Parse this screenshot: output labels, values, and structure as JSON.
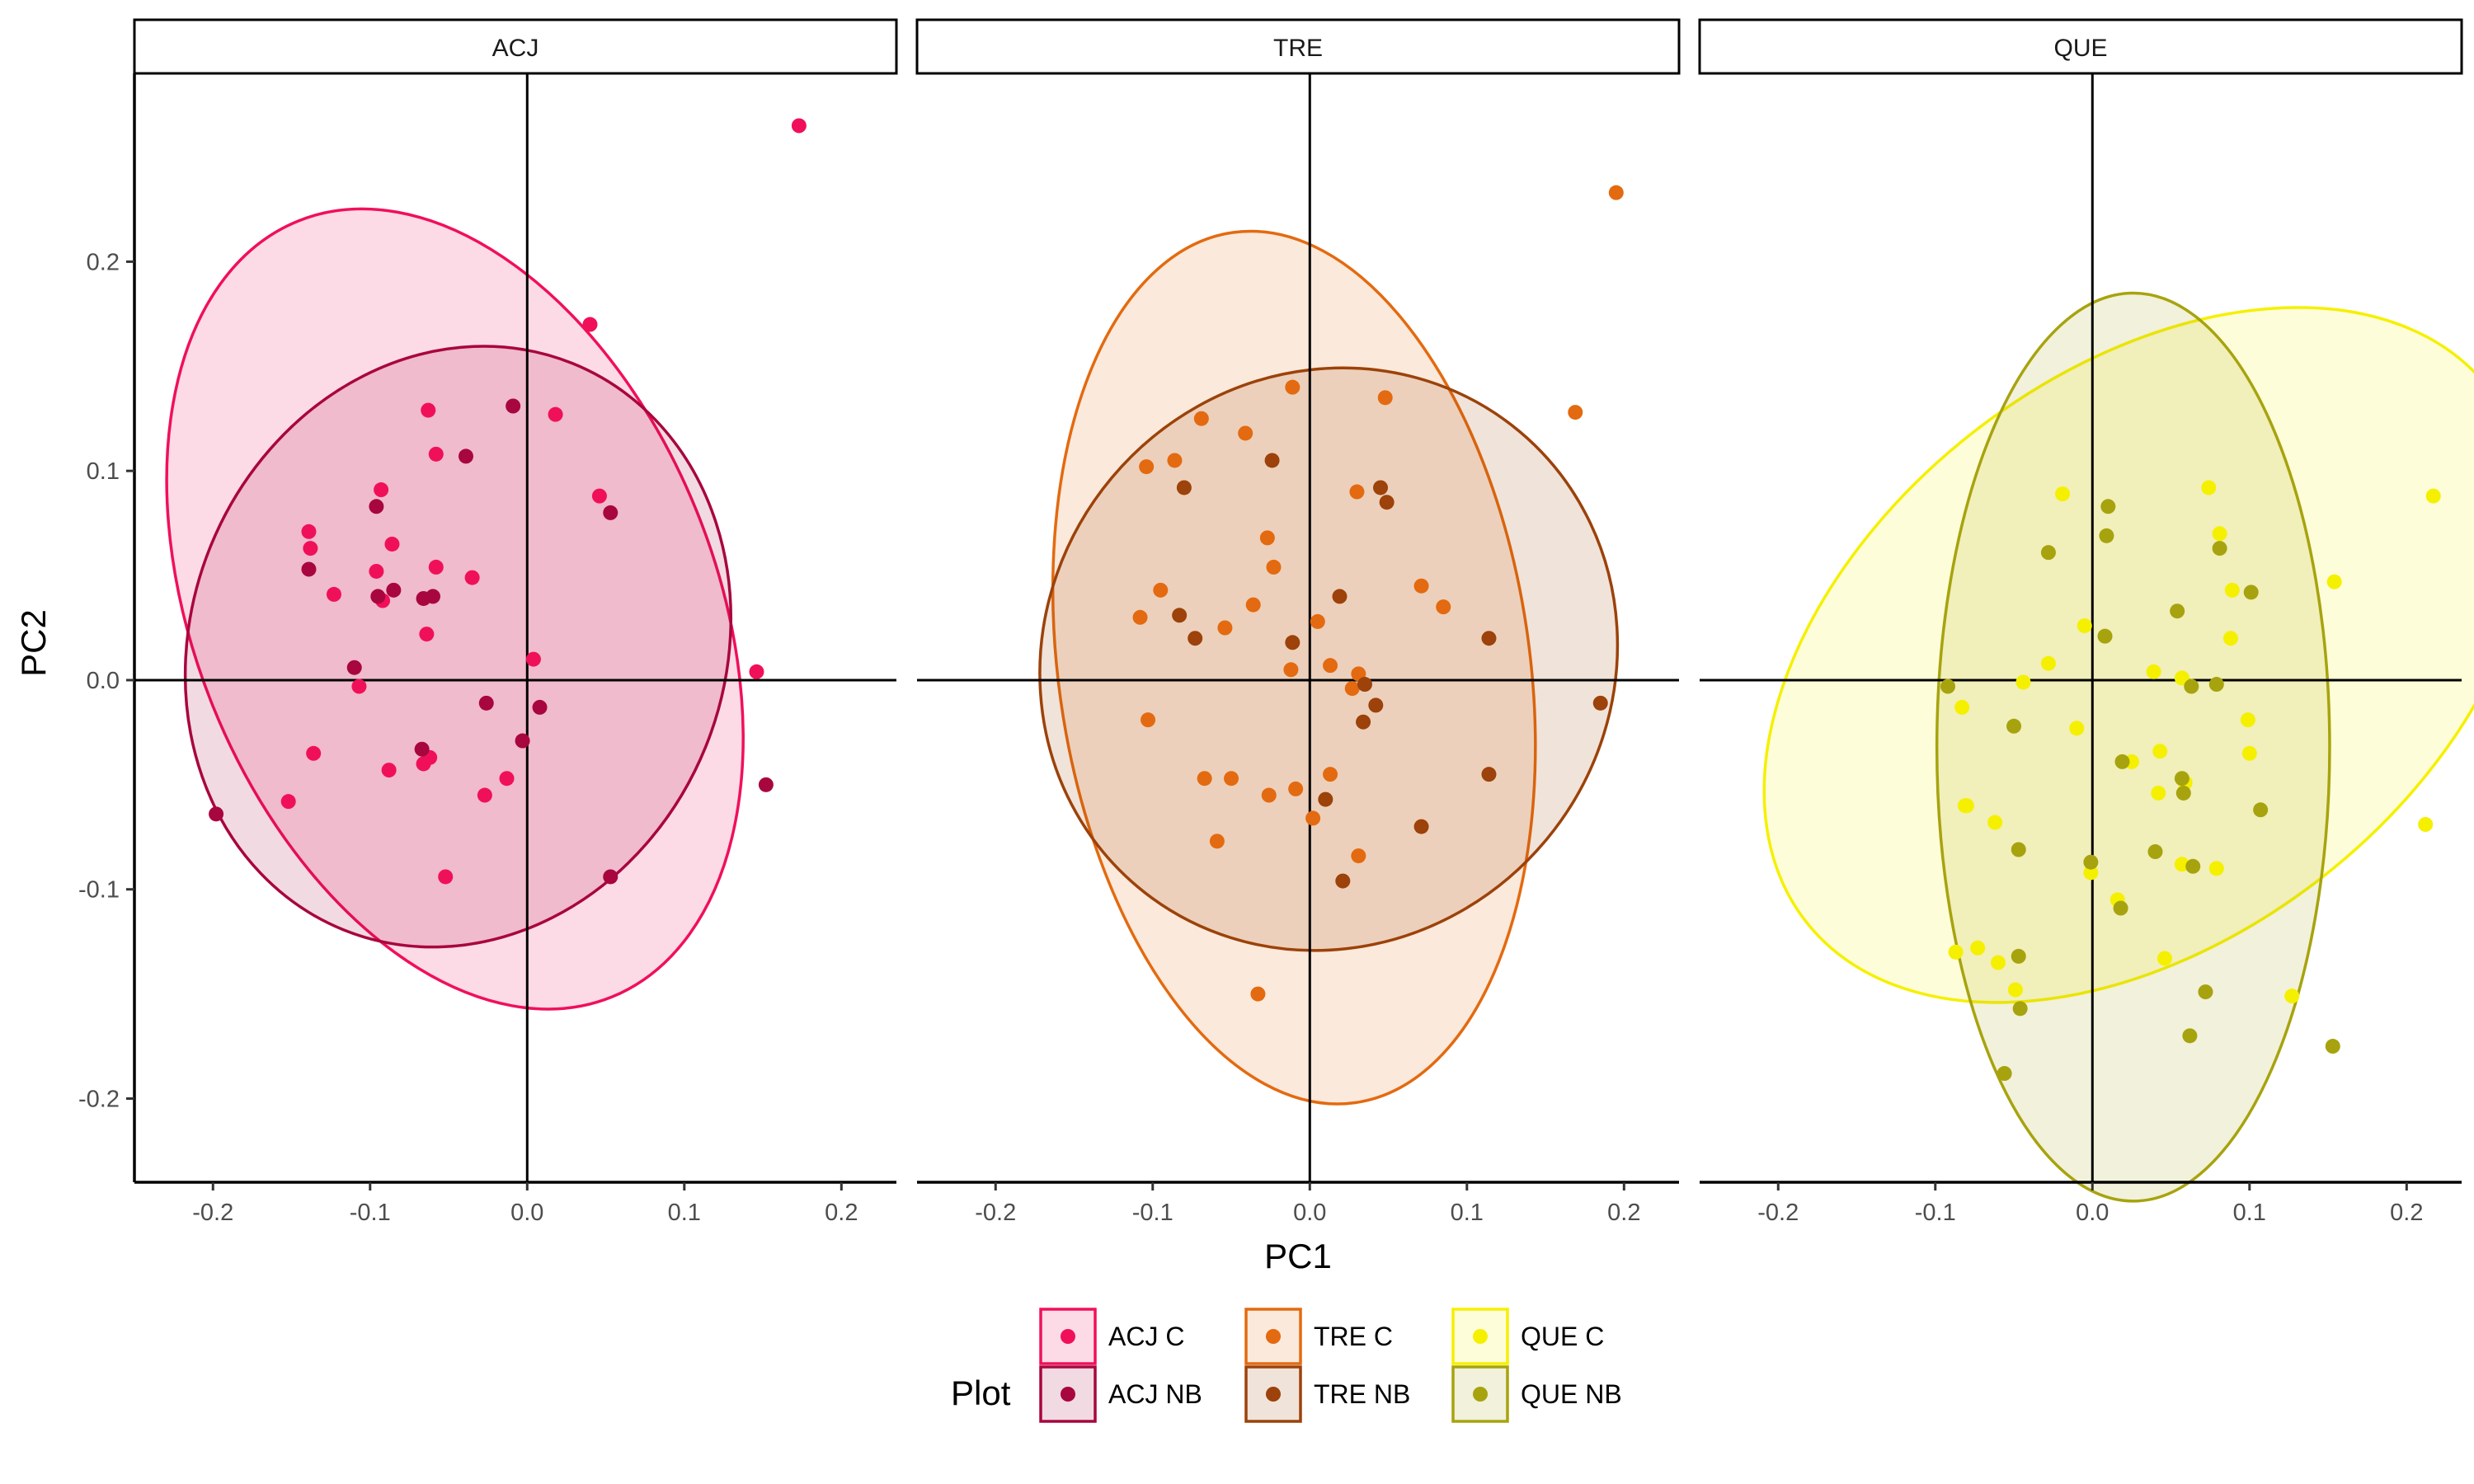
{
  "chart_data": {
    "type": "scatter",
    "xlabel": "PC1",
    "ylabel": "PC2",
    "xlim": [
      -0.25,
      0.235
    ],
    "ylim": [
      -0.24,
      0.29
    ],
    "x_ticks": [
      -0.2,
      -0.1,
      0.0,
      0.1,
      0.2
    ],
    "y_ticks": [
      -0.2,
      -0.1,
      0.0,
      0.1,
      0.2
    ],
    "x_tick_labels": [
      "-0.2",
      "-0.1",
      "0.0",
      "0.1",
      "0.2"
    ],
    "y_tick_labels": [
      "-0.2",
      "-0.1",
      "0.0",
      "0.1",
      "0.2"
    ],
    "reference_lines": {
      "x": 0,
      "y": 0
    },
    "legend": {
      "title": "Plot",
      "position": "bottom",
      "entries": [
        {
          "label": "ACJ C",
          "color": "#F0105A"
        },
        {
          "label": "ACJ NB",
          "color": "#A8063F"
        },
        {
          "label": "TRE C",
          "color": "#E36A10"
        },
        {
          "label": "TRE NB",
          "color": "#9C420A"
        },
        {
          "label": "QUE C",
          "color": "#F5F000"
        },
        {
          "label": "QUE NB",
          "color": "#A7A30E"
        }
      ]
    },
    "panels": [
      {
        "title": "ACJ",
        "series": [
          {
            "name": "ACJ C",
            "color": "#F0105A",
            "fill_opacity": 0.15,
            "ellipse": {
              "cx": -0.046,
              "cy": 0.034,
              "rx": 0.166,
              "ry": 0.2,
              "angle_deg": 22
            },
            "points": [
              [
                0.173,
                0.265
              ],
              [
                0.04,
                0.17
              ],
              [
                -0.063,
                0.129
              ],
              [
                0.018,
                0.127
              ],
              [
                -0.058,
                0.108
              ],
              [
                -0.093,
                0.091
              ],
              [
                0.046,
                0.088
              ],
              [
                -0.139,
                0.071
              ],
              [
                -0.138,
                0.063
              ],
              [
                -0.086,
                0.065
              ],
              [
                -0.058,
                0.054
              ],
              [
                -0.096,
                0.052
              ],
              [
                -0.035,
                0.049
              ],
              [
                -0.123,
                0.041
              ],
              [
                -0.092,
                0.038
              ],
              [
                -0.064,
                0.022
              ],
              [
                0.004,
                0.01
              ],
              [
                0.146,
                0.004
              ],
              [
                -0.107,
                -0.003
              ],
              [
                -0.062,
                -0.037
              ],
              [
                -0.066,
                -0.04
              ],
              [
                -0.088,
                -0.043
              ],
              [
                -0.136,
                -0.035
              ],
              [
                -0.013,
                -0.047
              ],
              [
                -0.027,
                -0.055
              ],
              [
                -0.152,
                -0.058
              ],
              [
                -0.052,
                -0.094
              ]
            ]
          },
          {
            "name": "ACJ NB",
            "color": "#A8063F",
            "fill_opacity": 0.15,
            "ellipse": {
              "cx": -0.044,
              "cy": 0.016,
              "rx": 0.17,
              "ry": 0.146,
              "angle_deg": -22
            },
            "points": [
              [
                -0.009,
                0.131
              ],
              [
                -0.039,
                0.107
              ],
              [
                -0.096,
                0.083
              ],
              [
                0.053,
                0.08
              ],
              [
                -0.139,
                0.053
              ],
              [
                -0.085,
                0.043
              ],
              [
                -0.095,
                0.04
              ],
              [
                -0.06,
                0.04
              ],
              [
                -0.066,
                0.039
              ],
              [
                -0.11,
                0.006
              ],
              [
                -0.026,
                -0.011
              ],
              [
                0.008,
                -0.013
              ],
              [
                -0.003,
                -0.029
              ],
              [
                -0.067,
                -0.033
              ],
              [
                0.152,
                -0.05
              ],
              [
                -0.198,
                -0.064
              ],
              [
                0.053,
                -0.094
              ]
            ]
          }
        ]
      },
      {
        "title": "TRE",
        "series": [
          {
            "name": "TRE C",
            "color": "#E36A10",
            "fill_opacity": 0.15,
            "ellipse": {
              "cx": -0.01,
              "cy": 0.006,
              "rx": 0.15,
              "ry": 0.21,
              "angle_deg": 8
            },
            "points": [
              [
                0.195,
                0.233
              ],
              [
                -0.011,
                0.14
              ],
              [
                0.048,
                0.135
              ],
              [
                0.169,
                0.128
              ],
              [
                -0.069,
                0.125
              ],
              [
                -0.041,
                0.118
              ],
              [
                -0.086,
                0.105
              ],
              [
                -0.104,
                0.102
              ],
              [
                0.03,
                0.09
              ],
              [
                -0.027,
                0.068
              ],
              [
                -0.023,
                0.054
              ],
              [
                -0.095,
                0.043
              ],
              [
                0.071,
                0.045
              ],
              [
                -0.036,
                0.036
              ],
              [
                0.085,
                0.035
              ],
              [
                -0.108,
                0.03
              ],
              [
                0.005,
                0.028
              ],
              [
                -0.054,
                0.025
              ],
              [
                0.013,
                0.007
              ],
              [
                -0.012,
                0.005
              ],
              [
                0.031,
                0.003
              ],
              [
                0.027,
                -0.004
              ],
              [
                -0.103,
                -0.019
              ],
              [
                0.013,
                -0.045
              ],
              [
                -0.067,
                -0.047
              ],
              [
                -0.05,
                -0.047
              ],
              [
                -0.009,
                -0.052
              ],
              [
                -0.026,
                -0.055
              ],
              [
                0.002,
                -0.066
              ],
              [
                -0.059,
                -0.077
              ],
              [
                0.031,
                -0.084
              ],
              [
                -0.033,
                -0.15
              ]
            ]
          },
          {
            "name": "TRE NB",
            "color": "#9C420A",
            "fill_opacity": 0.15,
            "ellipse": {
              "cx": 0.012,
              "cy": 0.01,
              "rx": 0.18,
              "ry": 0.142,
              "angle_deg": -40
            },
            "points": [
              [
                -0.024,
                0.105
              ],
              [
                -0.08,
                0.092
              ],
              [
                0.045,
                0.092
              ],
              [
                0.049,
                0.085
              ],
              [
                0.019,
                0.04
              ],
              [
                -0.083,
                0.031
              ],
              [
                -0.073,
                0.02
              ],
              [
                0.114,
                0.02
              ],
              [
                -0.011,
                0.018
              ],
              [
                0.035,
                -0.002
              ],
              [
                0.042,
                -0.012
              ],
              [
                0.185,
                -0.011
              ],
              [
                0.034,
                -0.02
              ],
              [
                0.114,
                -0.045
              ],
              [
                0.01,
                -0.057
              ],
              [
                0.071,
                -0.07
              ],
              [
                0.021,
                -0.096
              ]
            ]
          }
        ]
      },
      {
        "title": "QUE",
        "series": [
          {
            "name": "QUE C",
            "color": "#F5F000",
            "fill_opacity": 0.15,
            "ellipse": {
              "cx": 0.035,
              "cy": 0.012,
              "rx": 0.18,
              "ry": 0.207,
              "angle_deg": -52
            },
            "points": [
              [
                0.217,
                0.088
              ],
              [
                0.074,
                0.092
              ],
              [
                -0.019,
                0.089
              ],
              [
                0.081,
                0.07
              ],
              [
                0.154,
                0.047
              ],
              [
                0.089,
                0.043
              ],
              [
                -0.005,
                0.026
              ],
              [
                0.088,
                0.02
              ],
              [
                -0.028,
                0.008
              ],
              [
                0.039,
                0.004
              ],
              [
                0.057,
                0.001
              ],
              [
                -0.044,
                -0.001
              ],
              [
                -0.083,
                -0.013
              ],
              [
                0.099,
                -0.019
              ],
              [
                -0.01,
                -0.023
              ],
              [
                0.043,
                -0.034
              ],
              [
                0.1,
                -0.035
              ],
              [
                0.025,
                -0.039
              ],
              [
                0.059,
                -0.049
              ],
              [
                0.042,
                -0.054
              ],
              [
                -0.081,
                -0.06
              ],
              [
                -0.062,
                -0.068
              ],
              [
                0.212,
                -0.069
              ],
              [
                -0.08,
                -0.06
              ],
              [
                0.057,
                -0.088
              ],
              [
                0.079,
                -0.09
              ],
              [
                -0.001,
                -0.092
              ],
              [
                0.016,
                -0.105
              ],
              [
                -0.087,
                -0.13
              ],
              [
                -0.06,
                -0.135
              ],
              [
                0.046,
                -0.133
              ],
              [
                0.127,
                -0.151
              ],
              [
                -0.049,
                -0.148
              ],
              [
                -0.073,
                -0.128
              ]
            ]
          },
          {
            "name": "QUE NB",
            "color": "#A7A30E",
            "fill_opacity": 0.15,
            "ellipse": {
              "cx": 0.026,
              "cy": -0.032,
              "rx": 0.125,
              "ry": 0.217,
              "angle_deg": 0
            },
            "points": [
              [
                0.01,
                0.083
              ],
              [
                0.009,
                0.069
              ],
              [
                -0.028,
                0.061
              ],
              [
                0.081,
                0.063
              ],
              [
                0.101,
                0.042
              ],
              [
                0.054,
                0.033
              ],
              [
                0.008,
                0.021
              ],
              [
                -0.092,
                -0.003
              ],
              [
                0.079,
                -0.002
              ],
              [
                0.063,
                -0.003
              ],
              [
                -0.05,
                -0.022
              ],
              [
                0.019,
                -0.039
              ],
              [
                0.057,
                -0.047
              ],
              [
                0.058,
                -0.054
              ],
              [
                0.107,
                -0.062
              ],
              [
                -0.047,
                -0.081
              ],
              [
                0.04,
                -0.082
              ],
              [
                -0.001,
                -0.087
              ],
              [
                0.064,
                -0.089
              ],
              [
                0.018,
                -0.109
              ],
              [
                -0.047,
                -0.132
              ],
              [
                0.062,
                -0.17
              ],
              [
                0.153,
                -0.175
              ],
              [
                0.072,
                -0.149
              ],
              [
                -0.046,
                -0.157
              ],
              [
                -0.056,
                -0.188
              ]
            ]
          }
        ]
      }
    ]
  }
}
